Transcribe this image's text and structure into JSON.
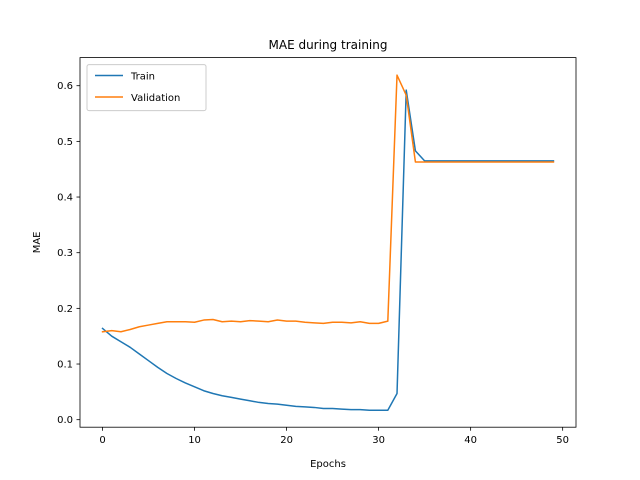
{
  "chart_data": {
    "type": "line",
    "title": "MAE during training",
    "xlabel": "Epochs",
    "ylabel": "MAE",
    "xlim": [
      -2.45,
      51.45
    ],
    "ylim": [
      -0.0135,
      0.6505
    ],
    "xticks": [
      0,
      10,
      20,
      30,
      40,
      50
    ],
    "yticks": [
      0.0,
      0.1,
      0.2,
      0.3,
      0.4,
      0.5,
      0.6
    ],
    "xtick_labels": [
      "0",
      "10",
      "20",
      "30",
      "40",
      "50"
    ],
    "ytick_labels": [
      "0.0",
      "0.1",
      "0.2",
      "0.3",
      "0.4",
      "0.5",
      "0.6"
    ],
    "grid": false,
    "legend_position": "upper-left",
    "x": [
      0,
      1,
      2,
      3,
      4,
      5,
      6,
      7,
      8,
      9,
      10,
      11,
      12,
      13,
      14,
      15,
      16,
      17,
      18,
      19,
      20,
      21,
      22,
      23,
      24,
      25,
      26,
      27,
      28,
      29,
      30,
      31,
      32,
      33,
      34,
      35,
      36,
      37,
      38,
      39,
      40,
      41,
      42,
      43,
      44,
      45,
      46,
      47,
      48,
      49
    ],
    "series": [
      {
        "name": "Train",
        "color": "#1f77b4",
        "values": [
          0.164,
          0.15,
          0.14,
          0.13,
          0.118,
          0.106,
          0.094,
          0.083,
          0.074,
          0.066,
          0.059,
          0.052,
          0.047,
          0.043,
          0.04,
          0.037,
          0.034,
          0.031,
          0.029,
          0.028,
          0.026,
          0.024,
          0.023,
          0.022,
          0.02,
          0.02,
          0.019,
          0.018,
          0.018,
          0.017,
          0.017,
          0.017,
          0.047,
          0.592,
          0.483,
          0.465,
          0.465,
          0.465,
          0.465,
          0.465,
          0.465,
          0.465,
          0.465,
          0.465,
          0.465,
          0.465,
          0.465,
          0.465,
          0.465,
          0.465
        ]
      },
      {
        "name": "Validation",
        "color": "#ff7f0e",
        "values": [
          0.158,
          0.16,
          0.158,
          0.162,
          0.167,
          0.17,
          0.173,
          0.176,
          0.176,
          0.176,
          0.175,
          0.179,
          0.18,
          0.176,
          0.177,
          0.176,
          0.178,
          0.177,
          0.176,
          0.179,
          0.177,
          0.177,
          0.175,
          0.174,
          0.173,
          0.175,
          0.175,
          0.174,
          0.176,
          0.173,
          0.173,
          0.177,
          0.619,
          0.583,
          0.463,
          0.463,
          0.463,
          0.463,
          0.463,
          0.463,
          0.463,
          0.463,
          0.463,
          0.463,
          0.463,
          0.463,
          0.463,
          0.463,
          0.463,
          0.463
        ]
      }
    ]
  }
}
